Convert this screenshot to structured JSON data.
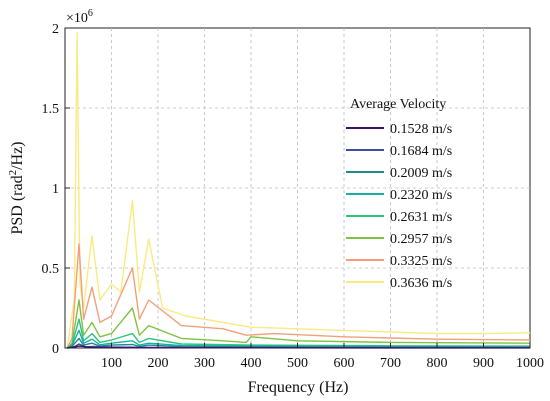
{
  "chart_data": {
    "type": "line",
    "xlabel": "Frequency (Hz)",
    "ylabel_main": "PSD (rad",
    "ylabel_sup": "2",
    "ylabel_end": "/Hz)",
    "exponent_prefix": "×10",
    "exponent_power": "6",
    "xlim": [
      0,
      1000
    ],
    "ylim": [
      0,
      2000000
    ],
    "x_ticks": [
      100,
      200,
      300,
      400,
      500,
      600,
      700,
      800,
      900,
      1000
    ],
    "y_ticks": [
      0,
      0.5,
      1,
      1.5,
      2
    ],
    "y_tick_labels": [
      "0",
      "0.5",
      "1",
      "1.5",
      "2"
    ],
    "x_tick_labels": [
      "100",
      "200",
      "300",
      "400",
      "500",
      "600",
      "700",
      "800",
      "900",
      "1000"
    ],
    "grid": true,
    "legend": {
      "title": "Average Velocity",
      "placement": "top-right"
    },
    "series": [
      {
        "name": "0.1528 m/s",
        "color": "#3b1266",
        "points": [
          [
            5,
            0
          ],
          [
            20,
            6000
          ],
          [
            30,
            12000
          ],
          [
            60,
            4000
          ],
          [
            100,
            2500
          ],
          [
            150,
            2000
          ],
          [
            200,
            1500
          ],
          [
            400,
            1000
          ],
          [
            700,
            800
          ],
          [
            1000,
            500
          ]
        ]
      },
      {
        "name": "0.1684 m/s",
        "color": "#3b4ea0",
        "points": [
          [
            5,
            0
          ],
          [
            20,
            8000
          ],
          [
            30,
            25000
          ],
          [
            45,
            6000
          ],
          [
            60,
            10000
          ],
          [
            100,
            6000
          ],
          [
            150,
            5000
          ],
          [
            200,
            3000
          ],
          [
            400,
            2500
          ],
          [
            700,
            1500
          ],
          [
            1000,
            1000
          ]
        ]
      },
      {
        "name": "0.2009 m/s",
        "color": "#1f8a8a",
        "points": [
          [
            5,
            0
          ],
          [
            15,
            10000
          ],
          [
            30,
            60000
          ],
          [
            40,
            18000
          ],
          [
            58,
            30000
          ],
          [
            75,
            12000
          ],
          [
            100,
            18000
          ],
          [
            145,
            22000
          ],
          [
            160,
            10000
          ],
          [
            180,
            18000
          ],
          [
            250,
            8000
          ],
          [
            400,
            6000
          ],
          [
            700,
            5000
          ],
          [
            1000,
            4000
          ]
        ]
      },
      {
        "name": "0.2320 m/s",
        "color": "#17b0a6",
        "points": [
          [
            5,
            0
          ],
          [
            15,
            15000
          ],
          [
            30,
            110000
          ],
          [
            40,
            30000
          ],
          [
            58,
            55000
          ],
          [
            75,
            20000
          ],
          [
            100,
            30000
          ],
          [
            145,
            45000
          ],
          [
            160,
            18000
          ],
          [
            180,
            30000
          ],
          [
            250,
            15000
          ],
          [
            400,
            12000
          ],
          [
            700,
            9000
          ],
          [
            1000,
            7000
          ]
        ]
      },
      {
        "name": "0.2631 m/s",
        "color": "#2cc47c",
        "points": [
          [
            5,
            0
          ],
          [
            15,
            20000
          ],
          [
            30,
            180000
          ],
          [
            40,
            45000
          ],
          [
            58,
            90000
          ],
          [
            75,
            35000
          ],
          [
            100,
            50000
          ],
          [
            145,
            90000
          ],
          [
            160,
            35000
          ],
          [
            180,
            60000
          ],
          [
            250,
            25000
          ],
          [
            400,
            18000
          ],
          [
            700,
            14000
          ],
          [
            1000,
            12000
          ]
        ]
      },
      {
        "name": "0.2957 m/s",
        "color": "#7fc242",
        "points": [
          [
            5,
            0
          ],
          [
            15,
            30000
          ],
          [
            30,
            300000
          ],
          [
            40,
            80000
          ],
          [
            58,
            160000
          ],
          [
            75,
            70000
          ],
          [
            100,
            90000
          ],
          [
            145,
            250000
          ],
          [
            160,
            80000
          ],
          [
            180,
            140000
          ],
          [
            250,
            60000
          ],
          [
            340,
            45000
          ],
          [
            390,
            35000
          ],
          [
            400,
            70000
          ],
          [
            500,
            45000
          ],
          [
            700,
            35000
          ],
          [
            1000,
            30000
          ]
        ]
      },
      {
        "name": "0.3325 m/s",
        "color": "#f1a07a",
        "points": [
          [
            5,
            0
          ],
          [
            15,
            60000
          ],
          [
            30,
            650000
          ],
          [
            40,
            180000
          ],
          [
            58,
            380000
          ],
          [
            75,
            160000
          ],
          [
            100,
            200000
          ],
          [
            145,
            500000
          ],
          [
            160,
            180000
          ],
          [
            180,
            300000
          ],
          [
            250,
            140000
          ],
          [
            340,
            120000
          ],
          [
            390,
            80000
          ],
          [
            450,
            90000
          ],
          [
            600,
            70000
          ],
          [
            800,
            55000
          ],
          [
            1000,
            50000
          ]
        ]
      },
      {
        "name": "0.3636 m/s",
        "color": "#f9ea82",
        "points": [
          [
            5,
            0
          ],
          [
            12,
            150000
          ],
          [
            20,
            300000
          ],
          [
            26,
            1970000
          ],
          [
            32,
            400000
          ],
          [
            40,
            250000
          ],
          [
            58,
            700000
          ],
          [
            75,
            300000
          ],
          [
            100,
            400000
          ],
          [
            120,
            350000
          ],
          [
            145,
            920000
          ],
          [
            160,
            350000
          ],
          [
            180,
            680000
          ],
          [
            210,
            250000
          ],
          [
            260,
            200000
          ],
          [
            340,
            160000
          ],
          [
            400,
            130000
          ],
          [
            500,
            120000
          ],
          [
            600,
            110000
          ],
          [
            700,
            100000
          ],
          [
            800,
            90000
          ],
          [
            900,
            90000
          ],
          [
            1000,
            95000
          ]
        ]
      }
    ]
  }
}
